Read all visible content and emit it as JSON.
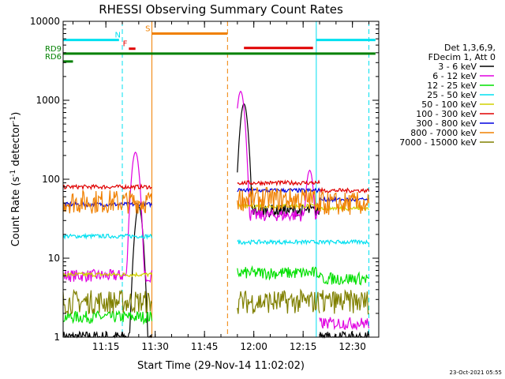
{
  "chart_data": {
    "type": "line",
    "title": "RHESSI Observing Summary Count Rates",
    "xlabel": "Start Time (29-Nov-14 11:02:02)",
    "ylabel_main": "Count Rate (s",
    "ylabel_sup1": "-1",
    "ylabel_mid": " detector",
    "ylabel_sup2": "-1",
    "ylabel_end": ")",
    "y_scale": "log",
    "ylim": [
      1,
      10000
    ],
    "xlim": [
      "11:02",
      "12:38"
    ],
    "x_ticks": [
      {
        "t": "11:15",
        "label": "11:15"
      },
      {
        "t": "11:30",
        "label": "11:30"
      },
      {
        "t": "11:45",
        "label": "11:45"
      },
      {
        "t": "12:00",
        "label": "12:00"
      },
      {
        "t": "12:15",
        "label": "12:15"
      },
      {
        "t": "12:30",
        "label": "12:30"
      }
    ],
    "y_ticks": [
      {
        "v": 1,
        "label": "1"
      },
      {
        "v": 10,
        "label": "10"
      },
      {
        "v": 100,
        "label": "100"
      },
      {
        "v": 1000,
        "label": "1000"
      },
      {
        "v": 10000,
        "label": "10000"
      }
    ],
    "legend_header": [
      "Det 1,3,6,9,",
      "FDecim 1, Att 0"
    ],
    "legend_position": "right",
    "series": [
      {
        "name": "3 - 6 keV",
        "color": "#000000"
      },
      {
        "name": "6 - 12 keV",
        "color": "#e000e0"
      },
      {
        "name": "12 - 25 keV",
        "color": "#00e000"
      },
      {
        "name": "25 - 50 keV",
        "color": "#00e0f0"
      },
      {
        "name": "50 - 100 keV",
        "color": "#d0d000"
      },
      {
        "name": "100 - 300 keV",
        "color": "#e00000"
      },
      {
        "name": "300 - 800 keV",
        "color": "#0000e0"
      },
      {
        "name": "800 - 7000 keV",
        "color": "#f08000"
      },
      {
        "name": "7000 - 15000 keV",
        "color": "#808000"
      }
    ],
    "vlines": [
      {
        "t": "11:02",
        "color": "#00e0f0",
        "style": "solid"
      },
      {
        "t": "11:20",
        "color": "#00e0f0",
        "style": "dashed"
      },
      {
        "t": "11:29",
        "color": "#f08000",
        "style": "solid"
      },
      {
        "t": "11:52",
        "color": "#f08000",
        "style": "dashed"
      },
      {
        "t": "12:19",
        "color": "#00e0f0",
        "style": "solid"
      },
      {
        "t": "12:35",
        "color": "#00e0f0",
        "style": "dashed"
      }
    ],
    "flag_bars": [
      {
        "label": "",
        "color": "#00e0f0",
        "t0": "11:02",
        "t1": "11:19",
        "v": 5800
      },
      {
        "label": "N",
        "color": "#00e0f0",
        "t0": "11:20",
        "t1": "11:20",
        "v": 5800
      },
      {
        "label": "F",
        "color": "#e00000",
        "t0": "11:22",
        "t1": "11:24",
        "v": 4500
      },
      {
        "label": "S",
        "color": "#f08000",
        "t0": "11:29",
        "t1": "11:52",
        "v": 7000
      },
      {
        "label": "",
        "color": "#e00000",
        "t0": "11:57",
        "t1": "12:18",
        "v": 4600
      },
      {
        "label": "",
        "color": "#00e0f0",
        "t0": "12:19",
        "t1": "12:37",
        "v": 5800
      },
      {
        "label": "RD9",
        "color": "#008000",
        "t0": "11:02",
        "t1": "12:37",
        "v": 3900
      },
      {
        "label": "RD6",
        "color": "#008000",
        "t0": "11:02",
        "t1": "11:05",
        "v": 3100
      }
    ],
    "segments": [
      {
        "t0": "11:02",
        "t1": "11:29",
        "levels": [
          1.0,
          6,
          1.8,
          19,
          6.2,
          80,
          48,
          52,
          2.8
        ]
      },
      {
        "t0": "11:55",
        "t1": "12:20",
        "levels": [
          40,
          35,
          6.5,
          16,
          46,
          90,
          72,
          56,
          2.8
        ]
      },
      {
        "t0": "12:20",
        "t1": "12:35",
        "levels": [
          1.0,
          1.5,
          5.5,
          16,
          43,
          72,
          55,
          49,
          2.8
        ]
      }
    ],
    "flares": [
      {
        "name": "6 - 12 keV",
        "t": "11:24",
        "peak": 220
      },
      {
        "name": "3 - 6 keV",
        "t": "11:25",
        "peak": 45
      },
      {
        "name": "6 - 12 keV",
        "t": "11:56",
        "peak": 1300
      },
      {
        "name": "3 - 6 keV",
        "t": "11:57",
        "peak": 900
      },
      {
        "name": "6 - 12 keV",
        "t": "12:17",
        "peak": 130
      }
    ]
  },
  "footer": {
    "timestamp": "23-Oct-2021 05:55"
  }
}
